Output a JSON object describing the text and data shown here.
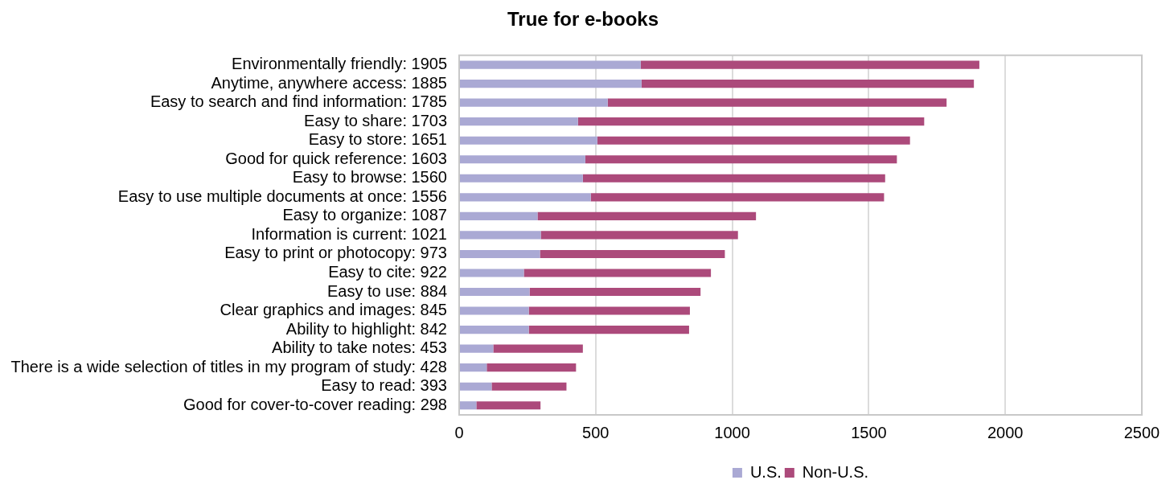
{
  "chart_data": {
    "type": "bar",
    "orientation": "horizontal",
    "stacked": true,
    "title": "True for e-books",
    "categories": [
      "Environmentally friendly: 1905",
      "Anytime, anywhere access: 1885",
      "Easy to search and find information: 1785",
      "Easy to share: 1703",
      "Easy to store: 1651",
      "Good for quick reference: 1603",
      "Easy to browse: 1560",
      "Easy to use multiple documents at once: 1556",
      "Easy to organize: 1087",
      "Information is current: 1021",
      "Easy to print or photocopy: 973",
      "Easy to cite: 922",
      "Easy to use: 884",
      "Clear graphics and images: 845",
      "Ability to highlight: 842",
      "Ability to take notes: 453",
      "There is a wide selection of titles in my program of study: 428",
      "Easy to read: 393",
      "Good for cover-to-cover reading: 298"
    ],
    "series": [
      {
        "name": "U.S.",
        "color": "#aaa9d4",
        "values": [
          665,
          668,
          544,
          435,
          506,
          462,
          453,
          482,
          287,
          299,
          296,
          237,
          258,
          255,
          255,
          125,
          101,
          119,
          63
        ]
      },
      {
        "name": "Non-U.S.",
        "color": "#ac4a7b",
        "values": [
          1240,
          1217,
          1241,
          1268,
          1145,
          1141,
          1107,
          1074,
          800,
          722,
          677,
          685,
          626,
          590,
          587,
          328,
          327,
          274,
          235
        ]
      }
    ],
    "xlim": [
      0,
      2500
    ],
    "xticks": [
      0,
      500,
      1000,
      1500,
      2000,
      2500
    ],
    "grid": "x",
    "legend": "bottom"
  }
}
